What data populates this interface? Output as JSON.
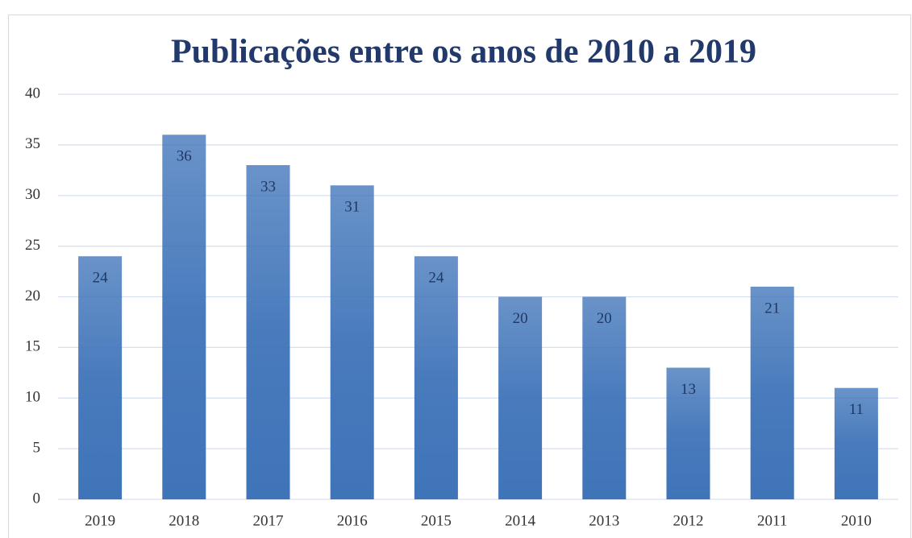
{
  "chart_data": {
    "type": "bar",
    "title": "Publicações entre os anos de 2010 a 2019",
    "categories": [
      "2019",
      "2018",
      "2017",
      "2016",
      "2015",
      "2014",
      "2013",
      "2012",
      "2011",
      "2010"
    ],
    "values": [
      24,
      36,
      33,
      31,
      24,
      20,
      20,
      13,
      21,
      11
    ],
    "color": "#3f74b9",
    "ylim": [
      0,
      40
    ],
    "yticks": [
      0,
      5,
      10,
      15,
      20,
      25,
      30,
      35,
      40
    ],
    "grid": true
  }
}
